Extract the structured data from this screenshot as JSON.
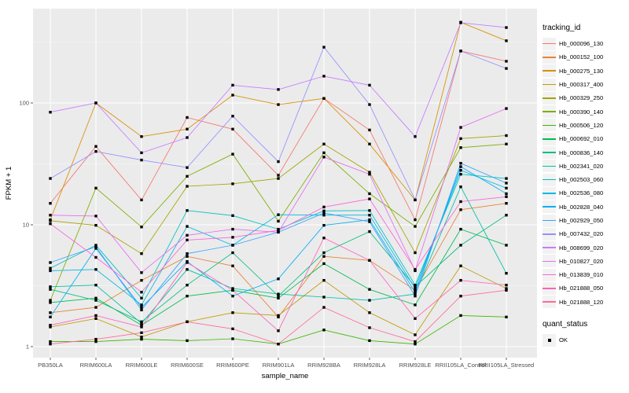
{
  "chart_data": {
    "type": "line",
    "title": "",
    "xlabel": "sample_name",
    "ylabel": "FPKM + 1",
    "x_categories": [
      "PB350LA",
      "RRIM600LA",
      "RRIM600LE",
      "RRIM600SE",
      "RRIM600PE",
      "RRIM901LA",
      "RRIM928BA",
      "RRIM928LA",
      "RRIM928LE",
      "RRII105LA_Control",
      "RRII105LA_Stressed"
    ],
    "y_scale": "log10",
    "y_ticks": [
      1,
      10,
      100
    ],
    "y_minor_ticks": [
      3.162,
      31.62,
      316.2
    ],
    "ylim_log10": [
      -0.09,
      2.78
    ],
    "grid": true,
    "panel_bg": "#EBEBEB",
    "grid_color": "#FFFFFF",
    "axis_text_color": "#4D4D4D",
    "marker": "black-square",
    "legend_position": "right",
    "series": [
      {
        "name": "Hb_000096_130",
        "color": "#F8766D",
        "values": [
          15,
          44,
          16,
          76,
          61,
          25.5,
          109,
          60,
          11,
          267,
          220
        ]
      },
      {
        "name": "Hb_000152_100",
        "color": "#EA8331",
        "values": [
          1.9,
          2.1,
          3.5,
          5.5,
          4.6,
          1.75,
          5.5,
          5.1,
          2.9,
          13.3,
          15
        ]
      },
      {
        "name": "Hb_000275_130",
        "color": "#D89000",
        "values": [
          11,
          100,
          53,
          61,
          116,
          97,
          109,
          46,
          16,
          460,
          324
        ]
      },
      {
        "name": "Hb_000317_400",
        "color": "#C09B00",
        "values": [
          1.45,
          1.7,
          1.2,
          1.6,
          1.9,
          1.8,
          3.5,
          1.9,
          1.25,
          4.6,
          3.0
        ]
      },
      {
        "name": "Hb_000329_250",
        "color": "#A3A500",
        "values": [
          10.8,
          9.9,
          5.8,
          20.7,
          21.7,
          24,
          46,
          27,
          5.9,
          51,
          54
        ]
      },
      {
        "name": "Hb_000390_140",
        "color": "#7CAE00",
        "values": [
          2.4,
          20,
          9.6,
          25,
          38,
          10.7,
          39,
          18,
          9.7,
          43,
          46
        ]
      },
      {
        "name": "Hb_000506_120",
        "color": "#39B600",
        "values": [
          1.1,
          1.1,
          1.15,
          1.12,
          1.16,
          1.05,
          1.37,
          1.12,
          1.05,
          1.8,
          1.75
        ]
      },
      {
        "name": "Hb_000692_010",
        "color": "#00BB4E",
        "values": [
          2.3,
          2.5,
          1.5,
          2.6,
          2.9,
          2.5,
          4.8,
          2.95,
          2.2,
          9.2,
          6.8
        ]
      },
      {
        "name": "Hb_000836_140",
        "color": "#00BF7D",
        "values": [
          2.95,
          2.4,
          1.6,
          3.2,
          5.9,
          2.6,
          5.9,
          8.8,
          3.1,
          6.8,
          12
        ]
      },
      {
        "name": "Hb_002341_020",
        "color": "#00C1A3",
        "values": [
          3.1,
          3.2,
          1.55,
          4.3,
          3.0,
          2.7,
          2.55,
          2.4,
          2.7,
          20.5,
          4.0
        ]
      },
      {
        "name": "Hb_002503_060",
        "color": "#00BFC4",
        "values": [
          4.4,
          6.8,
          2.5,
          13.1,
          11.9,
          9.2,
          13,
          13.1,
          3.2,
          26,
          24
        ]
      },
      {
        "name": "Hb_002536_080",
        "color": "#00BAE0",
        "values": [
          4.2,
          4.3,
          2.2,
          9.7,
          6.8,
          12.1,
          12,
          12,
          3.0,
          28,
          20
        ]
      },
      {
        "name": "Hb_002828_040",
        "color": "#00B0F6",
        "values": [
          1.75,
          6.4,
          2.1,
          5.0,
          2.6,
          3.6,
          9.9,
          11,
          2.8,
          30,
          18
        ]
      },
      {
        "name": "Hb_002929_050",
        "color": "#35A2FF",
        "values": [
          4.9,
          6.6,
          2.0,
          5.8,
          6.8,
          8.7,
          12.5,
          10.6,
          2.6,
          32,
          22
        ]
      },
      {
        "name": "Hb_007432_020",
        "color": "#9590FF",
        "values": [
          24,
          40,
          34,
          29.5,
          78,
          33,
          287,
          97,
          16,
          267,
          192
        ]
      },
      {
        "name": "Hb_008699_020",
        "color": "#C77CFF",
        "values": [
          84,
          100,
          39,
          52,
          140,
          129,
          166,
          140,
          53,
          455,
          416
        ]
      },
      {
        "name": "Hb_010827_020",
        "color": "#E76BF3",
        "values": [
          12,
          11.8,
          4.05,
          8.2,
          9.2,
          8.7,
          36,
          26,
          4.2,
          63,
          90
        ]
      },
      {
        "name": "Hb_013839_010",
        "color": "#FA62DB",
        "values": [
          10.2,
          5.4,
          2.8,
          7.5,
          7.9,
          9.0,
          14,
          16.3,
          4.3,
          15.5,
          17
        ]
      },
      {
        "name": "Hb_021888_050",
        "color": "#FF62BC",
        "values": [
          1.5,
          1.8,
          1.45,
          4.9,
          2.9,
          1.35,
          7.8,
          5.1,
          1.7,
          3.5,
          3.2
        ]
      },
      {
        "name": "Hb_021888_120",
        "color": "#FF6A98",
        "values": [
          1.05,
          1.15,
          1.3,
          1.6,
          1.4,
          1.05,
          2.1,
          1.43,
          1.1,
          2.6,
          2.9
        ]
      }
    ]
  },
  "legend": {
    "tracking_title": "tracking_id",
    "quant_title": "quant_status",
    "quant_items": [
      {
        "label": "OK"
      }
    ]
  }
}
